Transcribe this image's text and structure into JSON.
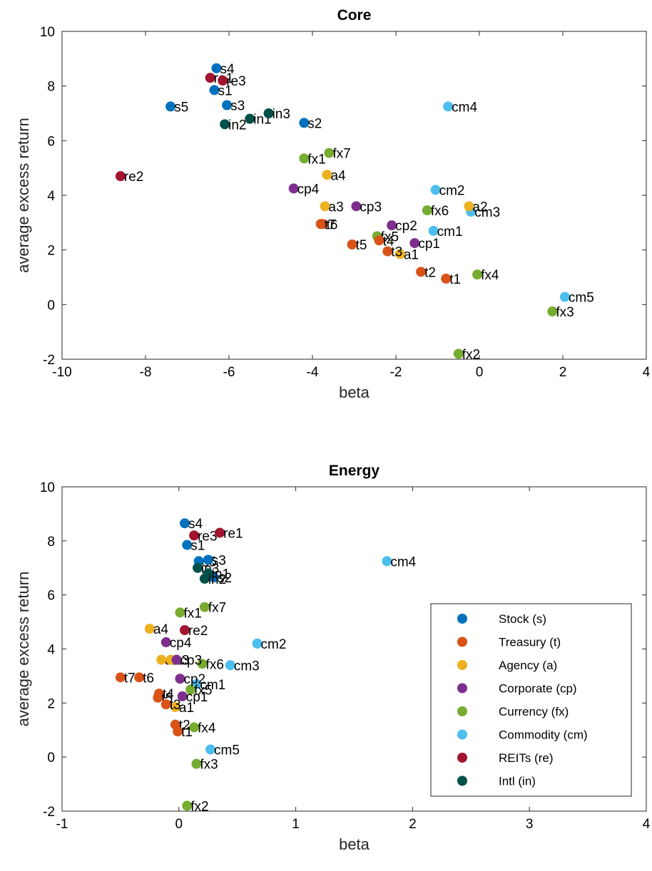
{
  "categories": [
    {
      "key": "s",
      "label": "Stock (s)",
      "color": "#0072BD"
    },
    {
      "key": "t",
      "label": "Treasury (t)",
      "color": "#D95319"
    },
    {
      "key": "a",
      "label": "Agency (a)",
      "color": "#EDB120"
    },
    {
      "key": "cp",
      "label": "Corporate (cp)",
      "color": "#7E2F8E"
    },
    {
      "key": "fx",
      "label": "Currency (fx)",
      "color": "#77AC30"
    },
    {
      "key": "cm",
      "label": "Commodity (cm)",
      "color": "#4DBEEE"
    },
    {
      "key": "re",
      "label": "REITs (re)",
      "color": "#A2142F"
    },
    {
      "key": "in",
      "label": "Intl (in)",
      "color": "#00504A"
    }
  ],
  "chart_data": [
    {
      "type": "scatter",
      "title": "Core",
      "xlabel": "beta",
      "ylabel": "average excess return",
      "xlim": [
        -10,
        4
      ],
      "ylim": [
        -2,
        10
      ],
      "xticks": [
        -10,
        -8,
        -6,
        -4,
        -2,
        0,
        2,
        4
      ],
      "yticks": [
        -2,
        0,
        2,
        4,
        6,
        8,
        10
      ],
      "legend": null,
      "points": [
        {
          "label": "s4",
          "cat": "s",
          "x": -6.3,
          "y": 8.65
        },
        {
          "label": "s1",
          "cat": "s",
          "x": -6.35,
          "y": 7.85
        },
        {
          "label": "s3",
          "cat": "s",
          "x": -6.05,
          "y": 7.3
        },
        {
          "label": "s5",
          "cat": "s",
          "x": -7.4,
          "y": 7.25
        },
        {
          "label": "s2",
          "cat": "s",
          "x": -4.2,
          "y": 6.65
        },
        {
          "label": "re1",
          "cat": "re",
          "x": -6.45,
          "y": 8.3
        },
        {
          "label": "re3",
          "cat": "re",
          "x": -6.15,
          "y": 8.2
        },
        {
          "label": "re2",
          "cat": "re",
          "x": -8.6,
          "y": 4.7
        },
        {
          "label": "in1",
          "cat": "in",
          "x": -5.5,
          "y": 6.8
        },
        {
          "label": "in3",
          "cat": "in",
          "x": -5.05,
          "y": 7.0
        },
        {
          "label": "in2",
          "cat": "in",
          "x": -6.1,
          "y": 6.6
        },
        {
          "label": "cm4",
          "cat": "cm",
          "x": -0.75,
          "y": 7.25
        },
        {
          "label": "cm2",
          "cat": "cm",
          "x": -1.05,
          "y": 4.2
        },
        {
          "label": "cm3",
          "cat": "cm",
          "x": -0.2,
          "y": 3.4
        },
        {
          "label": "cm1",
          "cat": "cm",
          "x": -1.1,
          "y": 2.7
        },
        {
          "label": "cm5",
          "cat": "cm",
          "x": 2.05,
          "y": 0.28
        },
        {
          "label": "fx1",
          "cat": "fx",
          "x": -4.2,
          "y": 5.35
        },
        {
          "label": "fx7",
          "cat": "fx",
          "x": -3.6,
          "y": 5.55
        },
        {
          "label": "fx6",
          "cat": "fx",
          "x": -1.25,
          "y": 3.45
        },
        {
          "label": "fx5",
          "cat": "fx",
          "x": -2.45,
          "y": 2.5
        },
        {
          "label": "fx4",
          "cat": "fx",
          "x": -0.05,
          "y": 1.1
        },
        {
          "label": "fx3",
          "cat": "fx",
          "x": 1.75,
          "y": -0.25
        },
        {
          "label": "fx2",
          "cat": "fx",
          "x": -0.5,
          "y": -1.8
        },
        {
          "label": "a4",
          "cat": "a",
          "x": -3.65,
          "y": 4.75
        },
        {
          "label": "a3",
          "cat": "a",
          "x": -3.7,
          "y": 3.6
        },
        {
          "label": "a2",
          "cat": "a",
          "x": -0.25,
          "y": 3.6
        },
        {
          "label": "a1",
          "cat": "a",
          "x": -1.9,
          "y": 1.85
        },
        {
          "label": "cp4",
          "cat": "cp",
          "x": -4.45,
          "y": 4.25
        },
        {
          "label": "cp3",
          "cat": "cp",
          "x": -2.95,
          "y": 3.6
        },
        {
          "label": "cp2",
          "cat": "cp",
          "x": -2.1,
          "y": 2.9
        },
        {
          "label": "cp1",
          "cat": "cp",
          "x": -1.55,
          "y": 2.25
        },
        {
          "label": "t6",
          "cat": "t",
          "x": -3.75,
          "y": 2.95
        },
        {
          "label": "t7",
          "cat": "t",
          "x": -3.8,
          "y": 2.95
        },
        {
          "label": "t4",
          "cat": "t",
          "x": -2.4,
          "y": 2.35
        },
        {
          "label": "t5",
          "cat": "t",
          "x": -3.05,
          "y": 2.2
        },
        {
          "label": "t3",
          "cat": "t",
          "x": -2.2,
          "y": 1.95
        },
        {
          "label": "t2",
          "cat": "t",
          "x": -1.4,
          "y": 1.2
        },
        {
          "label": "t1",
          "cat": "t",
          "x": -0.8,
          "y": 0.95
        }
      ]
    },
    {
      "type": "scatter",
      "title": "Energy",
      "xlabel": "beta",
      "ylabel": "average excess return",
      "xlim": [
        -1,
        4
      ],
      "ylim": [
        -2,
        10
      ],
      "xticks": [
        -1,
        0,
        1,
        2,
        3,
        4
      ],
      "yticks": [
        -2,
        0,
        2,
        4,
        6,
        8,
        10
      ],
      "legend": "right",
      "points": [
        {
          "label": "s4",
          "cat": "s",
          "x": 0.05,
          "y": 8.65
        },
        {
          "label": "s1",
          "cat": "s",
          "x": 0.07,
          "y": 7.85
        },
        {
          "label": "s5",
          "cat": "s",
          "x": 0.17,
          "y": 7.25
        },
        {
          "label": "s3",
          "cat": "s",
          "x": 0.25,
          "y": 7.3
        },
        {
          "label": "s2",
          "cat": "s",
          "x": 0.3,
          "y": 6.65
        },
        {
          "label": "re3",
          "cat": "re",
          "x": 0.13,
          "y": 8.2
        },
        {
          "label": "re1",
          "cat": "re",
          "x": 0.35,
          "y": 8.3
        },
        {
          "label": "re2",
          "cat": "re",
          "x": 0.05,
          "y": 4.7
        },
        {
          "label": "in3",
          "cat": "in",
          "x": 0.16,
          "y": 7.0
        },
        {
          "label": "in1",
          "cat": "in",
          "x": 0.25,
          "y": 6.8
        },
        {
          "label": "in2",
          "cat": "in",
          "x": 0.22,
          "y": 6.6
        },
        {
          "label": "cm4",
          "cat": "cm",
          "x": 1.78,
          "y": 7.25
        },
        {
          "label": "cm2",
          "cat": "cm",
          "x": 0.67,
          "y": 4.2
        },
        {
          "label": "cm3",
          "cat": "cm",
          "x": 0.44,
          "y": 3.4
        },
        {
          "label": "cm1",
          "cat": "cm",
          "x": 0.15,
          "y": 2.7
        },
        {
          "label": "cm5",
          "cat": "cm",
          "x": 0.27,
          "y": 0.28
        },
        {
          "label": "fx1",
          "cat": "fx",
          "x": 0.01,
          "y": 5.35
        },
        {
          "label": "fx7",
          "cat": "fx",
          "x": 0.22,
          "y": 5.55
        },
        {
          "label": "fx6",
          "cat": "fx",
          "x": 0.2,
          "y": 3.45
        },
        {
          "label": "fx5",
          "cat": "fx",
          "x": 0.1,
          "y": 2.5
        },
        {
          "label": "fx4",
          "cat": "fx",
          "x": 0.13,
          "y": 1.1
        },
        {
          "label": "fx3",
          "cat": "fx",
          "x": 0.15,
          "y": -0.25
        },
        {
          "label": "fx2",
          "cat": "fx",
          "x": 0.07,
          "y": -1.8
        },
        {
          "label": "a4",
          "cat": "a",
          "x": -0.25,
          "y": 4.75
        },
        {
          "label": "a2",
          "cat": "a",
          "x": -0.15,
          "y": 3.6
        },
        {
          "label": "a3",
          "cat": "a",
          "x": -0.07,
          "y": 3.6
        },
        {
          "label": "a1",
          "cat": "a",
          "x": -0.03,
          "y": 1.85
        },
        {
          "label": "cp4",
          "cat": "cp",
          "x": -0.11,
          "y": 4.25
        },
        {
          "label": "cp3",
          "cat": "cp",
          "x": -0.02,
          "y": 3.6
        },
        {
          "label": "cp2",
          "cat": "cp",
          "x": 0.01,
          "y": 2.9
        },
        {
          "label": "cp1",
          "cat": "cp",
          "x": 0.03,
          "y": 2.25
        },
        {
          "label": "t7",
          "cat": "t",
          "x": -0.5,
          "y": 2.95
        },
        {
          "label": "t6",
          "cat": "t",
          "x": -0.34,
          "y": 2.95
        },
        {
          "label": "t4",
          "cat": "t",
          "x": -0.17,
          "y": 2.35
        },
        {
          "label": "t5",
          "cat": "t",
          "x": -0.18,
          "y": 2.2
        },
        {
          "label": "t3",
          "cat": "t",
          "x": -0.11,
          "y": 1.95
        },
        {
          "label": "t2",
          "cat": "t",
          "x": -0.03,
          "y": 1.2
        },
        {
          "label": "t1",
          "cat": "t",
          "x": -0.01,
          "y": 0.95
        }
      ]
    }
  ]
}
